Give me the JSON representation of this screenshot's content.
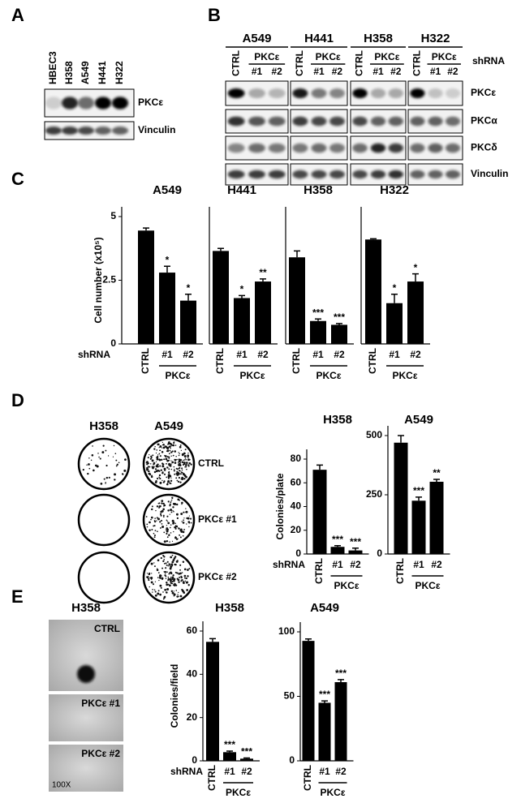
{
  "panel_labels": [
    "A",
    "B",
    "C",
    "D",
    "E"
  ],
  "blot_a": {
    "lanes": [
      "HBEC3",
      "H358",
      "A549",
      "H441",
      "H322"
    ],
    "rows": [
      "PKCε",
      "Vinculin"
    ]
  },
  "blot_b": {
    "cell_lines": [
      "A549",
      "H441",
      "H358",
      "H322"
    ],
    "ctrl_label": "CTRL",
    "group_label": "PKCε",
    "clones": [
      "#1",
      "#2"
    ],
    "shrna_label": "shRNA",
    "rows": [
      "PKCε",
      "PKCα",
      "PKCδ",
      "Vinculin"
    ]
  },
  "colony_plates": {
    "columns": [
      "H358",
      "A549"
    ],
    "rows": [
      "CTRL",
      "PKCε #1",
      "PKCε #2"
    ]
  },
  "soft_agar": {
    "title": "H358",
    "rows": [
      "CTRL",
      "PKCε #1",
      "PKCε #2"
    ],
    "magnification": "100X"
  },
  "chart_data": [
    {
      "type": "bar",
      "title": "A549",
      "categories": [
        "CTRL",
        "#1",
        "#2"
      ],
      "values": [
        4.45,
        2.8,
        1.7
      ],
      "errors": [
        0.1,
        0.25,
        0.25
      ],
      "annotations": [
        null,
        "*",
        "*"
      ],
      "group_label": "PKCε",
      "x_label": "shRNA",
      "y_label": "Cell number (x10⁵)",
      "ylim": [
        0,
        5
      ],
      "yticks": [
        0,
        2.5,
        5
      ],
      "color": "#000000"
    },
    {
      "type": "bar",
      "title": "H441",
      "categories": [
        "CTRL",
        "#1",
        "#2"
      ],
      "values": [
        3.65,
        1.8,
        2.45
      ],
      "errors": [
        0.1,
        0.1,
        0.1
      ],
      "annotations": [
        null,
        "*",
        "**"
      ],
      "group_label": "PKCε",
      "ylim": [
        0,
        5
      ],
      "color": "#000000"
    },
    {
      "type": "bar",
      "title": "H358",
      "categories": [
        "CTRL",
        "#1",
        "#2"
      ],
      "values": [
        3.4,
        0.9,
        0.75
      ],
      "errors": [
        0.25,
        0.08,
        0.05
      ],
      "annotations": [
        null,
        "***",
        "***"
      ],
      "group_label": "PKCε",
      "ylim": [
        0,
        5
      ],
      "color": "#000000"
    },
    {
      "type": "bar",
      "title": "H322",
      "categories": [
        "CTRL",
        "#1",
        "#2"
      ],
      "values": [
        4.1,
        1.6,
        2.45
      ],
      "errors": [
        0.03,
        0.35,
        0.3
      ],
      "annotations": [
        null,
        "*",
        "*"
      ],
      "group_label": "PKCε",
      "ylim": [
        0,
        5
      ],
      "color": "#000000"
    },
    {
      "type": "bar",
      "title": "H358",
      "categories": [
        "CTRL",
        "#1",
        "#2"
      ],
      "values": [
        71,
        6,
        3
      ],
      "errors": [
        4,
        1,
        2
      ],
      "annotations": [
        null,
        "***",
        "***"
      ],
      "group_label": "PKCε",
      "x_label": "shRNA",
      "y_label": "Colonies/plate",
      "ylim": [
        0,
        80
      ],
      "yticks": [
        0,
        20,
        40,
        60,
        80
      ],
      "color": "#000000"
    },
    {
      "type": "bar",
      "title": "A549",
      "categories": [
        "CTRL",
        "#1",
        "#2"
      ],
      "values": [
        470,
        225,
        305
      ],
      "errors": [
        30,
        15,
        10
      ],
      "annotations": [
        null,
        "***",
        "**"
      ],
      "group_label": "PKCε",
      "ylim": [
        0,
        500
      ],
      "yticks": [
        0,
        250,
        500
      ],
      "color": "#000000"
    },
    {
      "type": "bar",
      "title": "H358",
      "categories": [
        "CTRL",
        "#1",
        "#2"
      ],
      "values": [
        55,
        4,
        1
      ],
      "errors": [
        1.5,
        0.5,
        0.3
      ],
      "annotations": [
        null,
        "***",
        "***"
      ],
      "group_label": "PKCε",
      "x_label": "shRNA",
      "y_label": "Colonies/field",
      "ylim": [
        0,
        60
      ],
      "yticks": [
        0,
        20,
        40,
        60
      ],
      "color": "#000000"
    },
    {
      "type": "bar",
      "title": "A549",
      "categories": [
        "CTRL",
        "#1",
        "#2"
      ],
      "values": [
        93,
        45,
        61
      ],
      "errors": [
        1.5,
        1.5,
        2
      ],
      "annotations": [
        null,
        "***",
        "***"
      ],
      "group_label": "PKCε",
      "ylim": [
        0,
        100
      ],
      "yticks": [
        0,
        50,
        100
      ],
      "color": "#000000"
    }
  ]
}
